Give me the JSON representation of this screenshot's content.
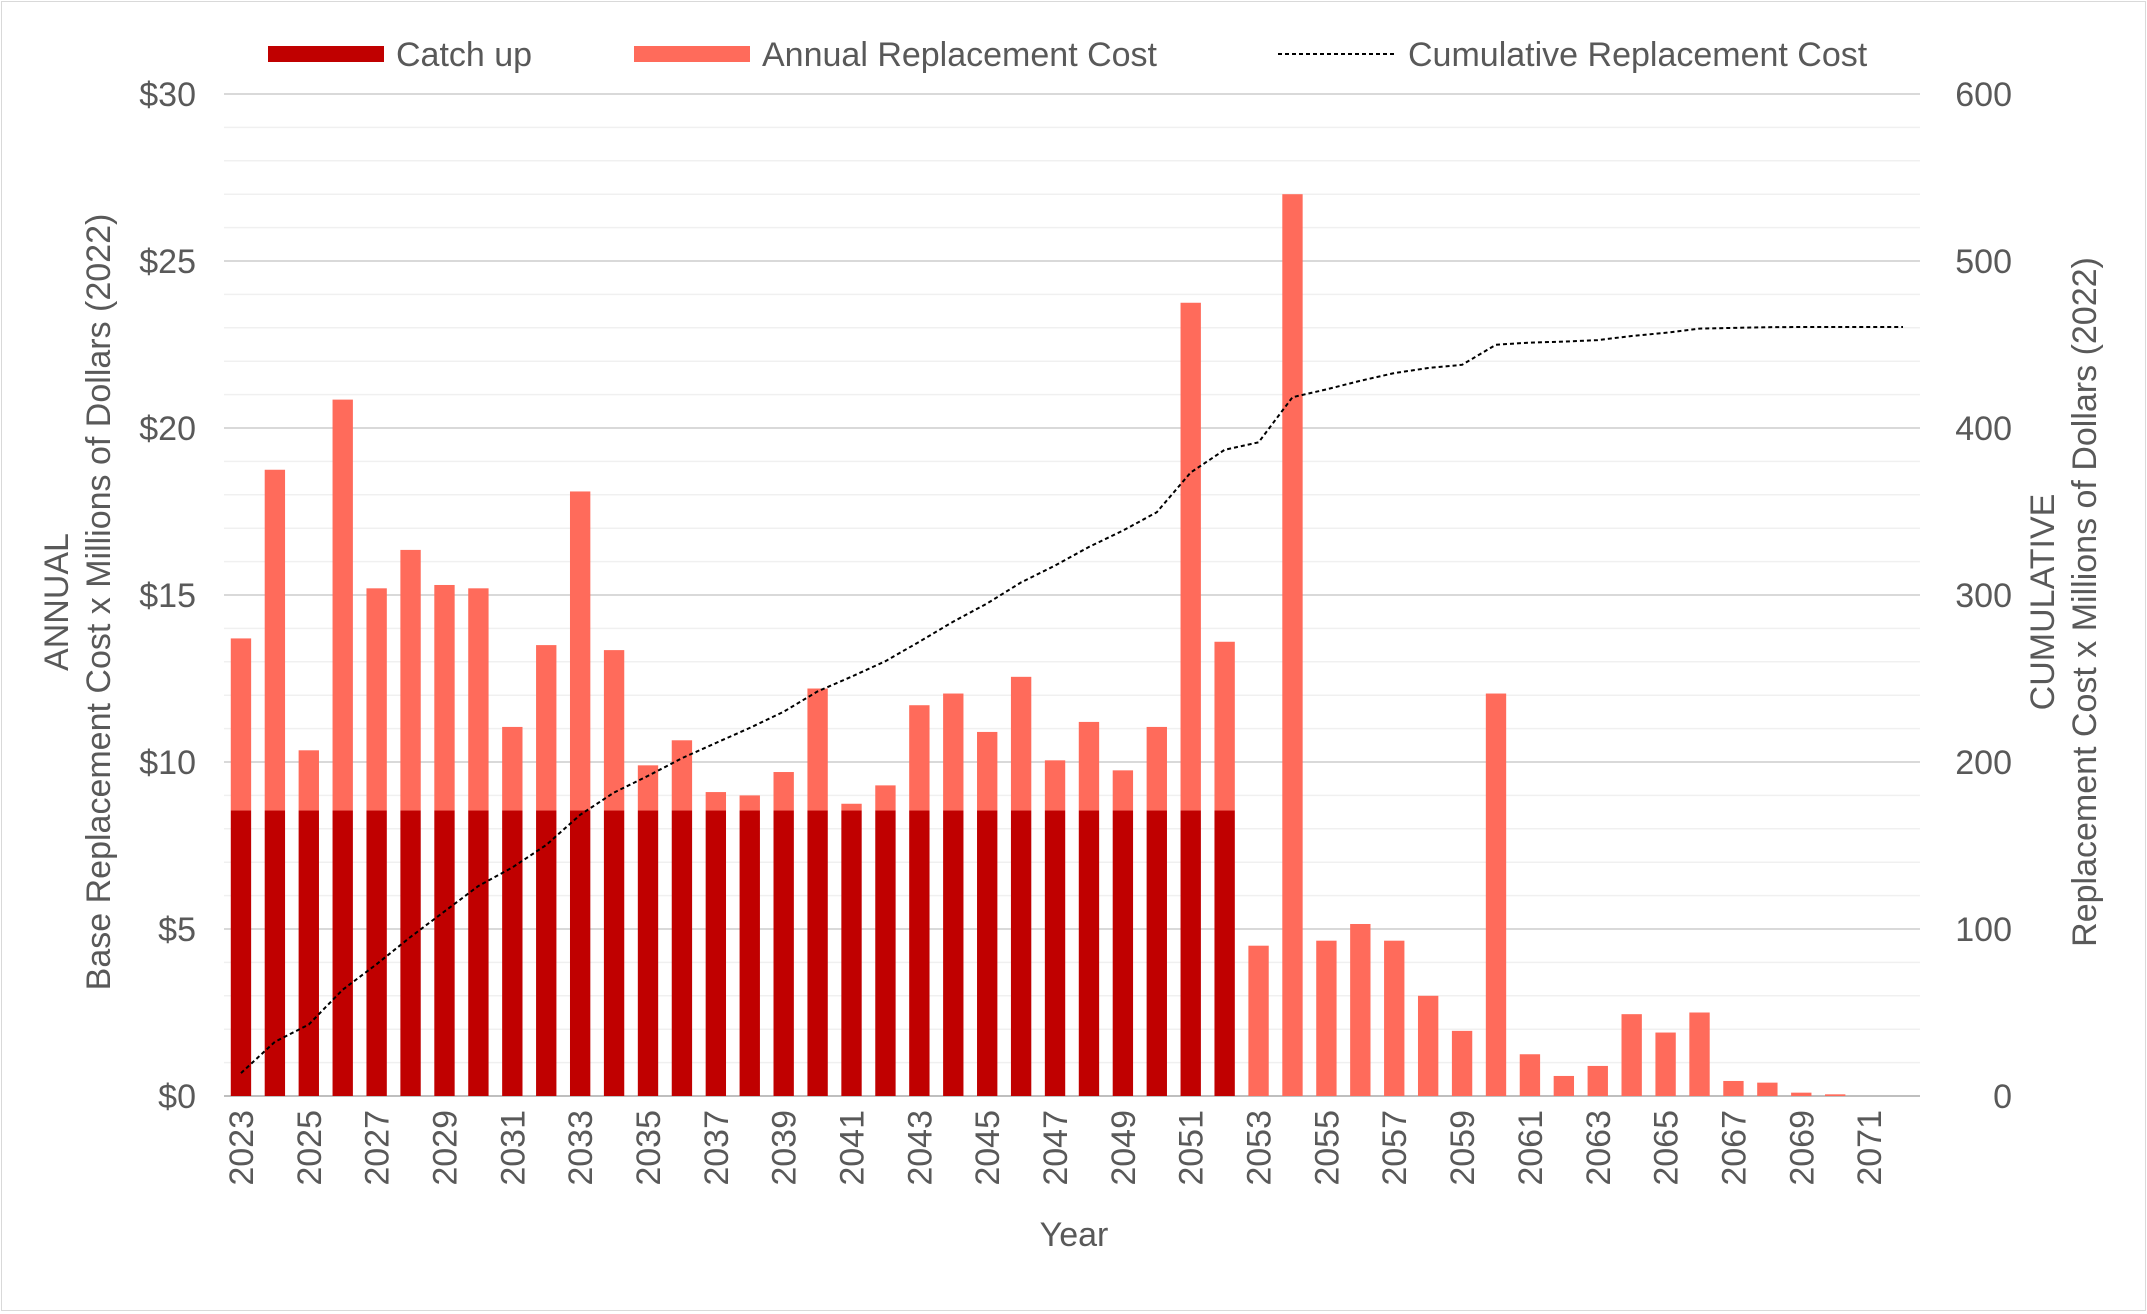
{
  "chart_data": {
    "type": "bar",
    "title": "",
    "xlabel": "Year",
    "ylabel_left": [
      "ANNUAL",
      "Base Replacement Cost x Millions of Dollars (2022)"
    ],
    "ylabel_right": [
      "CUMULATIVE",
      "Replacement Cost x Millions of Dollars (2022)"
    ],
    "ylim_left": [
      0,
      30
    ],
    "ylim_right": [
      0,
      600
    ],
    "left_ticks": [
      "$0",
      "$5",
      "$10",
      "$15",
      "$20",
      "$25",
      "$30"
    ],
    "right_ticks": [
      "0",
      "100",
      "200",
      "300",
      "400",
      "500",
      "600"
    ],
    "legend_position": "top",
    "categories": [
      2023,
      2024,
      2025,
      2026,
      2027,
      2028,
      2029,
      2030,
      2031,
      2032,
      2033,
      2034,
      2035,
      2036,
      2037,
      2038,
      2039,
      2040,
      2041,
      2042,
      2043,
      2044,
      2045,
      2046,
      2047,
      2048,
      2049,
      2050,
      2051,
      2052,
      2053,
      2054,
      2055,
      2056,
      2057,
      2058,
      2059,
      2060,
      2061,
      2062,
      2063,
      2064,
      2065,
      2066,
      2067,
      2068,
      2069,
      2070,
      2071,
      2072
    ],
    "x_tick_labels": [
      "2023",
      "2025",
      "2027",
      "2029",
      "2031",
      "2033",
      "2035",
      "2037",
      "2039",
      "2041",
      "2043",
      "2045",
      "2047",
      "2049",
      "2051",
      "2053",
      "2055",
      "2057",
      "2059",
      "2061",
      "2063",
      "2065",
      "2067",
      "2069",
      "2071"
    ],
    "series": [
      {
        "name": "Catch up",
        "kind": "stacked-bar",
        "color": "#c00000",
        "values": [
          8.55,
          8.55,
          8.55,
          8.55,
          8.55,
          8.55,
          8.55,
          8.55,
          8.55,
          8.55,
          8.55,
          8.55,
          8.55,
          8.55,
          8.55,
          8.55,
          8.55,
          8.55,
          8.55,
          8.55,
          8.55,
          8.55,
          8.55,
          8.55,
          8.55,
          8.55,
          8.55,
          8.55,
          8.55,
          8.55,
          0,
          0,
          0,
          0,
          0,
          0,
          0,
          0,
          0,
          0,
          0,
          0,
          0,
          0,
          0,
          0,
          0,
          0,
          0,
          0
        ]
      },
      {
        "name": "Annual Replacement Cost",
        "kind": "stacked-bar",
        "color": "#ff6b5b",
        "values": [
          5.15,
          10.2,
          1.8,
          12.3,
          6.65,
          7.8,
          6.75,
          6.65,
          2.5,
          4.95,
          9.55,
          4.8,
          1.35,
          2.1,
          0.55,
          0.45,
          1.15,
          3.65,
          0.2,
          0.75,
          3.15,
          3.5,
          2.35,
          4.0,
          1.5,
          2.65,
          1.2,
          2.5,
          15.2,
          5.05,
          4.5,
          27.0,
          4.65,
          5.15,
          4.65,
          3.0,
          1.95,
          12.05,
          1.25,
          0.6,
          0.9,
          2.45,
          1.9,
          2.5,
          0.45,
          0.4,
          0.1,
          0.05,
          0,
          0
        ]
      },
      {
        "name": "Cumulative Replacement Cost",
        "kind": "line",
        "axis": "right",
        "color": "#000000",
        "values": [
          13.7,
          32.45,
          42.8,
          63.65,
          78.9,
          95.25,
          110.55,
          125.75,
          136.8,
          150.3,
          168.4,
          181.75,
          191.65,
          202.3,
          211.4,
          220.4,
          230.1,
          242.3,
          251.05,
          260.35,
          272.05,
          284.1,
          295.0,
          307.55,
          317.6,
          328.8,
          338.55,
          349.6,
          373.35,
          386.95,
          391.45,
          418.45,
          423.1,
          428.25,
          432.9,
          435.9,
          437.85,
          449.9,
          451.15,
          451.75,
          452.65,
          455.1,
          457.0,
          459.5,
          459.95,
          460.35,
          460.45,
          460.5,
          460.5,
          460.5
        ]
      }
    ]
  }
}
